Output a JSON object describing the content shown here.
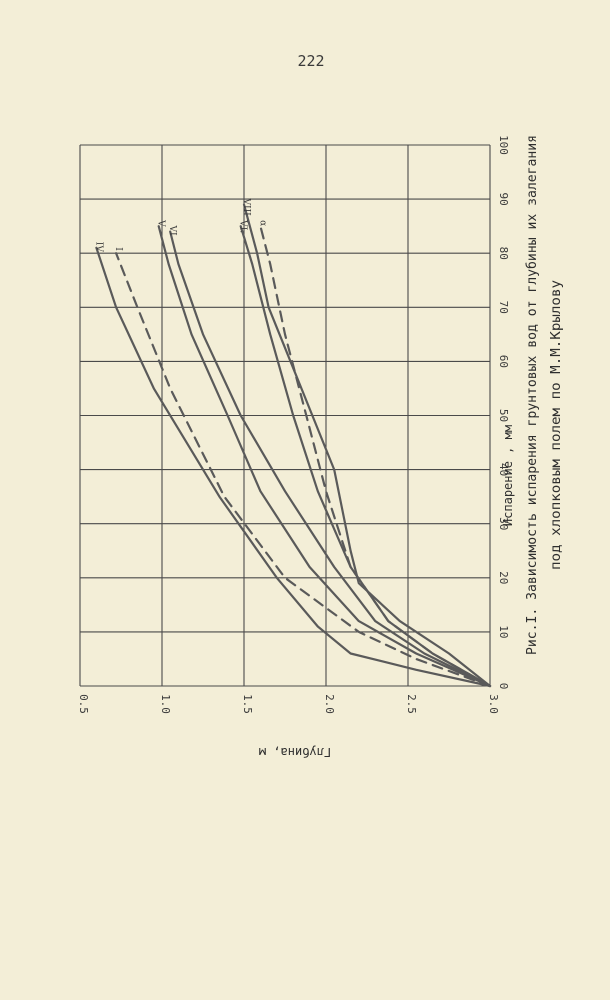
{
  "page_number": "222",
  "caption_line1": "Рис.I. Зависимость испарения грунтовых вод от глубины их залегания",
  "caption_line2": "под хлопковым полем по М.М.Крылову",
  "chart_data": {
    "type": "line",
    "orientation": "rotated-90-clockwise",
    "xlabel": "Испарение , мм",
    "ylabel": "Глубина, м",
    "x_ticks": [
      "0",
      "10",
      "20",
      "30",
      "40",
      "50",
      "60",
      "70",
      "80",
      "90",
      "100"
    ],
    "y_ticks": [
      "0.5",
      "1.0",
      "1.5",
      "2.0",
      "2.5",
      "3.0"
    ],
    "xlim": [
      0,
      100
    ],
    "ylim": [
      0.5,
      3.0
    ],
    "y_inverted": true,
    "grid": true,
    "series": [
      {
        "name": "IV",
        "style": "solid",
        "points": [
          [
            0,
            3.0
          ],
          [
            3,
            2.55
          ],
          [
            6,
            2.15
          ],
          [
            11,
            1.95
          ],
          [
            20,
            1.7
          ],
          [
            35,
            1.35
          ],
          [
            55,
            0.95
          ],
          [
            70,
            0.72
          ],
          [
            81,
            0.6
          ]
        ]
      },
      {
        "name": "I",
        "style": "dashed",
        "points": [
          [
            0,
            3.0
          ],
          [
            5,
            2.55
          ],
          [
            10,
            2.2
          ],
          [
            20,
            1.75
          ],
          [
            35,
            1.38
          ],
          [
            55,
            1.05
          ],
          [
            70,
            0.85
          ],
          [
            80,
            0.72
          ]
        ]
      },
      {
        "name": "V",
        "style": "solid",
        "points": [
          [
            0,
            3.0
          ],
          [
            6,
            2.55
          ],
          [
            12,
            2.2
          ],
          [
            22,
            1.9
          ],
          [
            36,
            1.6
          ],
          [
            50,
            1.4
          ],
          [
            65,
            1.18
          ],
          [
            78,
            1.04
          ],
          [
            85,
            0.98
          ]
        ]
      },
      {
        "name": "VI",
        "style": "solid",
        "points": [
          [
            0,
            3.0
          ],
          [
            6,
            2.6
          ],
          [
            12,
            2.3
          ],
          [
            22,
            2.05
          ],
          [
            36,
            1.75
          ],
          [
            50,
            1.48
          ],
          [
            65,
            1.25
          ],
          [
            78,
            1.1
          ],
          [
            84,
            1.05
          ]
        ]
      },
      {
        "name": "VI.",
        "style": "solid",
        "points": [
          [
            0,
            3.0
          ],
          [
            6,
            2.65
          ],
          [
            12,
            2.38
          ],
          [
            22,
            2.15
          ],
          [
            36,
            1.95
          ],
          [
            50,
            1.8
          ],
          [
            65,
            1.66
          ],
          [
            78,
            1.55
          ],
          [
            85,
            1.48
          ]
        ]
      },
      {
        "name": "α",
        "style": "dashed",
        "points": [
          [
            0,
            3.0
          ],
          [
            6,
            2.65
          ],
          [
            12,
            2.38
          ],
          [
            22,
            2.15
          ],
          [
            36,
            2.0
          ],
          [
            50,
            1.88
          ],
          [
            65,
            1.75
          ],
          [
            78,
            1.66
          ],
          [
            85,
            1.6
          ]
        ]
      },
      {
        "name": "VIII",
        "style": "solid",
        "points": [
          [
            0,
            3.0
          ],
          [
            6,
            2.75
          ],
          [
            12,
            2.45
          ],
          [
            19,
            2.2
          ],
          [
            25,
            2.15
          ],
          [
            40,
            2.05
          ],
          [
            55,
            1.85
          ],
          [
            70,
            1.65
          ],
          [
            80,
            1.58
          ],
          [
            89,
            1.5
          ]
        ]
      }
    ]
  }
}
